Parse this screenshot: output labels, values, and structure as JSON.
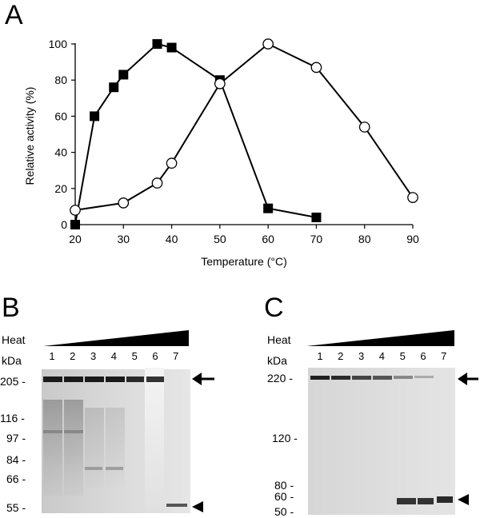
{
  "panels": {
    "a": "A",
    "b": "B",
    "c": "C"
  },
  "chart_data": {
    "type": "line",
    "xlabel": "Temperature (°C)",
    "ylabel": "Relative activity (%)",
    "xlim": [
      20,
      90
    ],
    "ylim": [
      0,
      100
    ],
    "xticks": [
      "20",
      "30",
      "40",
      "50",
      "60",
      "70",
      "80",
      "90"
    ],
    "yticks": [
      "0",
      "20",
      "40",
      "60",
      "80",
      "100"
    ],
    "grid": false,
    "series": [
      {
        "marker": "filled-square",
        "color": "#000000",
        "points": [
          [
            20,
            0
          ],
          [
            24,
            60
          ],
          [
            28,
            76
          ],
          [
            30,
            83
          ],
          [
            37,
            100
          ],
          [
            40,
            98
          ],
          [
            50,
            80
          ],
          [
            60,
            9
          ],
          [
            70,
            4
          ]
        ]
      },
      {
        "marker": "open-circle",
        "color": "#000000",
        "points": [
          [
            20,
            8
          ],
          [
            30,
            12
          ],
          [
            37,
            23
          ],
          [
            40,
            34
          ],
          [
            50,
            78
          ],
          [
            60,
            100
          ],
          [
            70,
            87
          ],
          [
            80,
            54
          ],
          [
            90,
            15
          ]
        ]
      }
    ]
  },
  "gel_b": {
    "heat_label": "Heat",
    "kda_label": "kDa",
    "lanes": [
      "1",
      "2",
      "3",
      "4",
      "5",
      "6",
      "7"
    ],
    "markers": [
      "205 -",
      "116 -",
      "97 -",
      "84 -",
      "66 -",
      "55 -"
    ]
  },
  "gel_c": {
    "heat_label": "Heat",
    "kda_label": "kDa",
    "lanes": [
      "1",
      "2",
      "3",
      "4",
      "5",
      "6",
      "7"
    ],
    "markers": [
      "220 -",
      "120 -",
      "80 -",
      "60 -",
      "50 -"
    ]
  }
}
